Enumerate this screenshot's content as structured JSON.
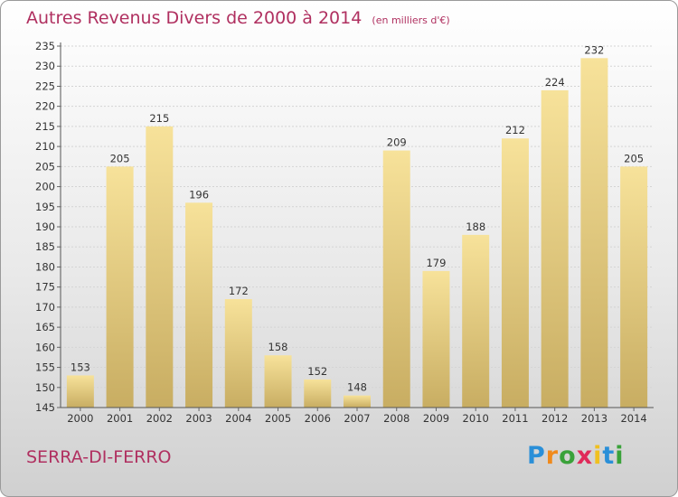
{
  "header": {
    "title": "Autres Revenus Divers de 2000 à 2014",
    "unit": "(en milliers d'€)"
  },
  "footer": {
    "place": "SERRA-DI-FERRO",
    "logo_letters": [
      "P",
      "r",
      "o",
      "x",
      "i",
      "t",
      "i"
    ],
    "logo_colors": [
      "#2a8fd8",
      "#f08a1c",
      "#3aa23a",
      "#e02a5a",
      "#f0c020",
      "#2a8fd8",
      "#3aa23a"
    ]
  },
  "colors": {
    "title": "#b03060",
    "bar_light": "#f7e29a",
    "bar_dark": "#c8ad62"
  },
  "chart_data": {
    "type": "bar",
    "title": "Autres Revenus Divers de 2000 à 2014",
    "subtitle": "(en milliers d'€)",
    "xlabel": "",
    "ylabel": "",
    "categories": [
      "2000",
      "2001",
      "2002",
      "2003",
      "2004",
      "2005",
      "2006",
      "2007",
      "2008",
      "2009",
      "2010",
      "2011",
      "2012",
      "2013",
      "2014"
    ],
    "values": [
      153,
      205,
      215,
      196,
      172,
      158,
      152,
      148,
      209,
      179,
      188,
      212,
      224,
      232,
      205
    ],
    "ylim": [
      145,
      235
    ],
    "yticks": [
      145,
      150,
      155,
      160,
      165,
      170,
      175,
      180,
      185,
      190,
      195,
      200,
      205,
      210,
      215,
      220,
      225,
      230,
      235
    ],
    "grid": true,
    "legend": "none"
  }
}
